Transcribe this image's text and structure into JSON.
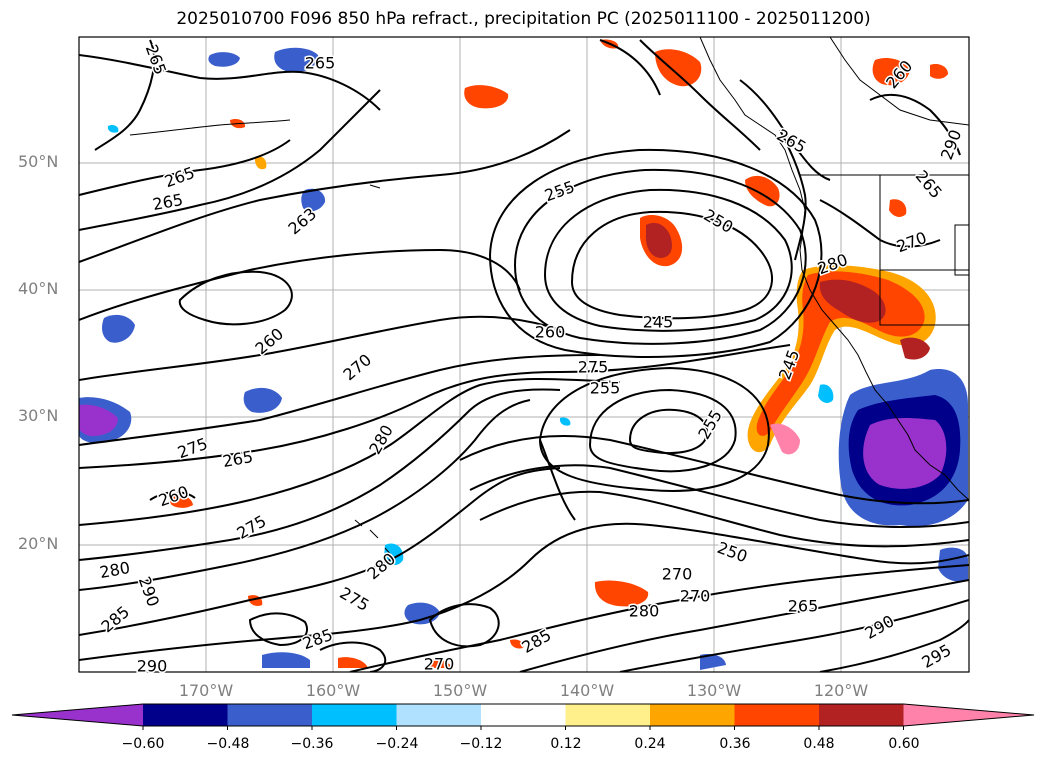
{
  "title": "2025010700 F096 850 hPa refract., precipitation PC (2025011100 - 2025011200)",
  "axes": {
    "lat_labels": [
      "50°N",
      "40°N",
      "30°N",
      "20°N"
    ],
    "lon_labels": [
      "170°W",
      "160°W",
      "150°W",
      "140°W",
      "130°W",
      "120°W"
    ]
  },
  "colorbar": {
    "tick_labels": [
      "−0.60",
      "−0.48",
      "−0.36",
      "−0.24",
      "−0.12",
      "0.12",
      "0.24",
      "0.36",
      "0.48",
      "0.60"
    ],
    "colors": [
      "#9932cc",
      "#00008b",
      "#3a5fcd",
      "#00bfff",
      "#b0e2ff",
      "#ffffff",
      "#fff08c",
      "#ffa500",
      "#ff4500",
      "#b22222",
      "#ff82ab"
    ]
  },
  "contour_labels": [
    "265",
    "265",
    "265",
    "265",
    "263",
    "255",
    "250",
    "245",
    "260",
    "270",
    "275",
    "255",
    "260",
    "275",
    "280",
    "265",
    "260",
    "275",
    "280",
    "290",
    "285",
    "280",
    "275",
    "285",
    "270",
    "270",
    "270",
    "280",
    "265",
    "250",
    "255",
    "265",
    "260",
    "265",
    "285",
    "290",
    "290",
    "295",
    "290",
    "280",
    "245",
    "270"
  ]
}
